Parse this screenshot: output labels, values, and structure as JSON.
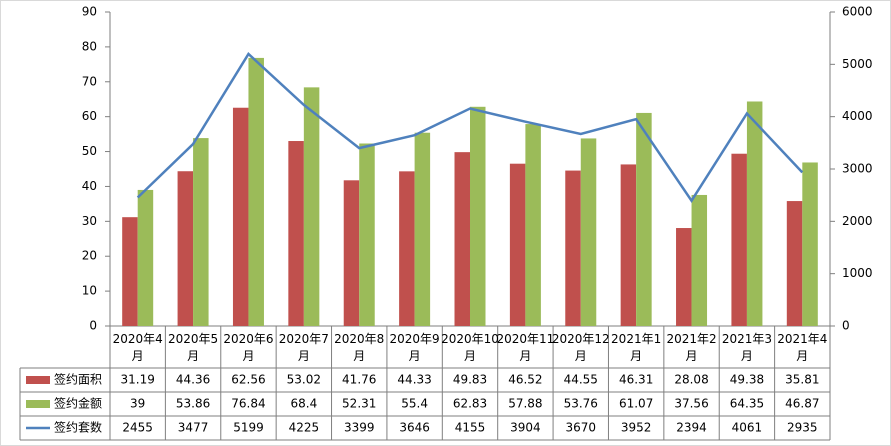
{
  "chart_data": {
    "type": "bar",
    "categories": [
      "2020年4月",
      "2020年5月",
      "2020年6月",
      "2020年7月",
      "2020年8月",
      "2020年9月",
      "2020年10月",
      "2020年11月",
      "2020年12月",
      "2021年1月",
      "2021年2月",
      "2021年3月",
      "2021年4月"
    ],
    "series": [
      {
        "name": "签约面积",
        "color": "#c0504d",
        "type": "bar",
        "values": [
          31.19,
          44.36,
          62.56,
          53.02,
          41.76,
          44.33,
          49.83,
          46.52,
          44.55,
          46.31,
          28.08,
          49.38,
          35.81
        ]
      },
      {
        "name": "签约金额",
        "color": "#9bbb59",
        "type": "bar",
        "values": [
          39,
          53.86,
          76.84,
          68.4,
          52.31,
          55.4,
          62.83,
          57.88,
          53.76,
          61.07,
          37.56,
          64.35,
          46.87
        ]
      },
      {
        "name": "签约套数",
        "color": "#4f81bd",
        "type": "line",
        "axis": "y2",
        "values": [
          2455,
          3477,
          5199,
          4225,
          3399,
          3646,
          4155,
          3904,
          3670,
          3952,
          2394,
          4061,
          2935
        ]
      }
    ],
    "ylim": [
      0,
      90
    ],
    "yticks": [
      0,
      10,
      20,
      30,
      40,
      50,
      60,
      70,
      80,
      90
    ],
    "y2lim": [
      0,
      6000
    ],
    "y2ticks": [
      0,
      1000,
      2000,
      3000,
      4000,
      5000,
      6000
    ],
    "grid": false
  }
}
